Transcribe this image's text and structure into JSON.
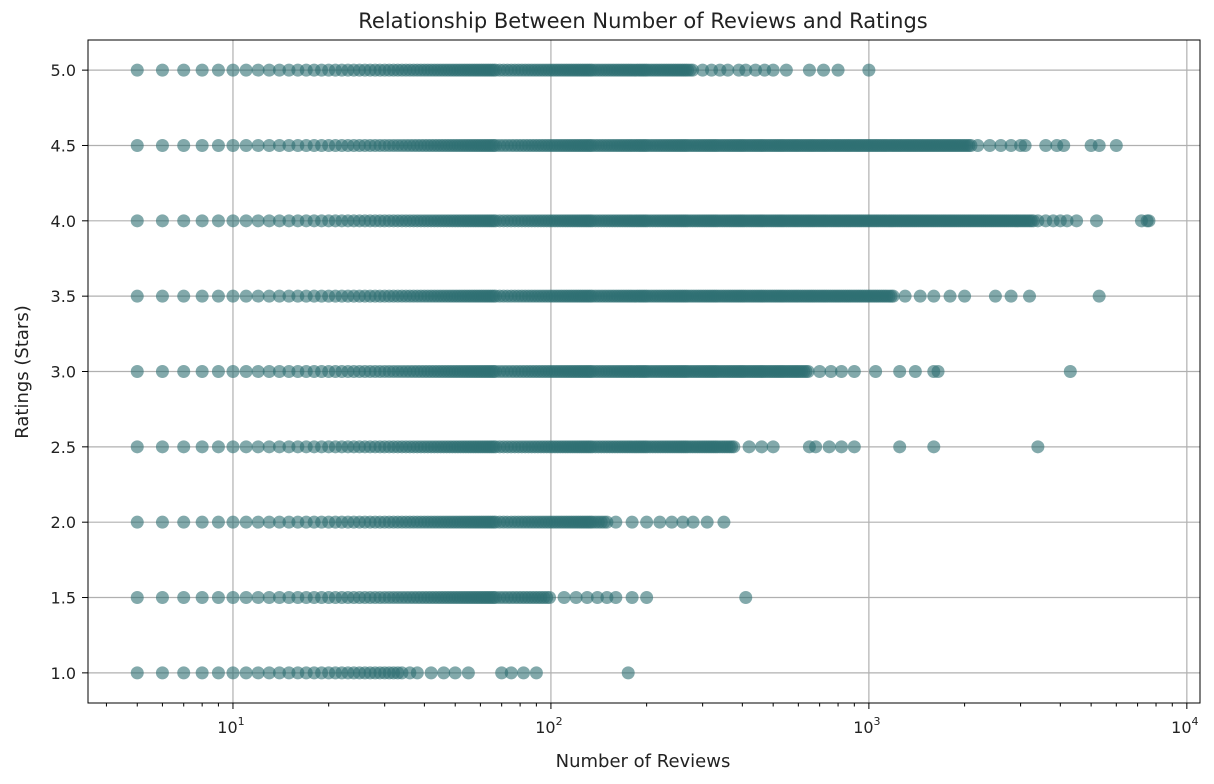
{
  "chart_data": {
    "type": "scatter",
    "title": "Relationship Between Number of Reviews and Ratings",
    "xlabel": "Number of Reviews",
    "ylabel": "Ratings (Stars)",
    "x_scale": "log",
    "xlim": [
      3.5,
      11000
    ],
    "ylim": [
      0.8,
      5.2
    ],
    "grid": true,
    "marker_color": "#2f6f73",
    "marker_alpha": 0.6,
    "x_ticks": [
      {
        "value": 10,
        "base": "10",
        "exp": "1"
      },
      {
        "value": 100,
        "base": "10",
        "exp": "2"
      },
      {
        "value": 1000,
        "base": "10",
        "exp": "3"
      },
      {
        "value": 10000,
        "base": "10",
        "exp": "4"
      }
    ],
    "y_ticks": [
      1.0,
      1.5,
      2.0,
      2.5,
      3.0,
      3.5,
      4.0,
      4.5,
      5.0
    ],
    "y_tick_labels": [
      "1.0",
      "1.5",
      "2.0",
      "2.5",
      "3.0",
      "3.5",
      "4.0",
      "4.5",
      "5.0"
    ],
    "series": [
      {
        "rating": 5.0,
        "dense_max": 280,
        "sparse": [
          300,
          320,
          340,
          360,
          390,
          410,
          440,
          470,
          500,
          550,
          650,
          720,
          800,
          1000
        ]
      },
      {
        "rating": 4.5,
        "dense_max": 2100,
        "sparse": [
          2200,
          2400,
          2600,
          2800,
          3000,
          3100,
          3600,
          3900,
          4100,
          5000,
          5300,
          6000
        ]
      },
      {
        "rating": 4.0,
        "dense_max": 3300,
        "sparse": [
          3400,
          3600,
          3800,
          4000,
          4200,
          4500,
          5200,
          7200,
          7500,
          7600
        ]
      },
      {
        "rating": 3.5,
        "dense_max": 1200,
        "sparse": [
          1300,
          1450,
          1600,
          1800,
          2000,
          2500,
          2800,
          3200,
          5300
        ]
      },
      {
        "rating": 3.0,
        "dense_max": 650,
        "sparse": [
          700,
          760,
          820,
          900,
          1050,
          1250,
          1400,
          1600,
          1650,
          4300
        ]
      },
      {
        "rating": 2.5,
        "dense_max": 380,
        "sparse": [
          420,
          460,
          500,
          650,
          680,
          750,
          820,
          900,
          1250,
          1600,
          3400
        ]
      },
      {
        "rating": 2.0,
        "dense_max": 150,
        "sparse": [
          160,
          180,
          200,
          220,
          240,
          260,
          280,
          310,
          350
        ]
      },
      {
        "rating": 1.5,
        "dense_max": 100,
        "sparse": [
          110,
          120,
          130,
          140,
          150,
          160,
          180,
          200,
          410
        ]
      },
      {
        "rating": 1.0,
        "dense_max": 34,
        "sparse": [
          36,
          38,
          42,
          46,
          50,
          55,
          70,
          75,
          82,
          90,
          175
        ]
      }
    ]
  }
}
